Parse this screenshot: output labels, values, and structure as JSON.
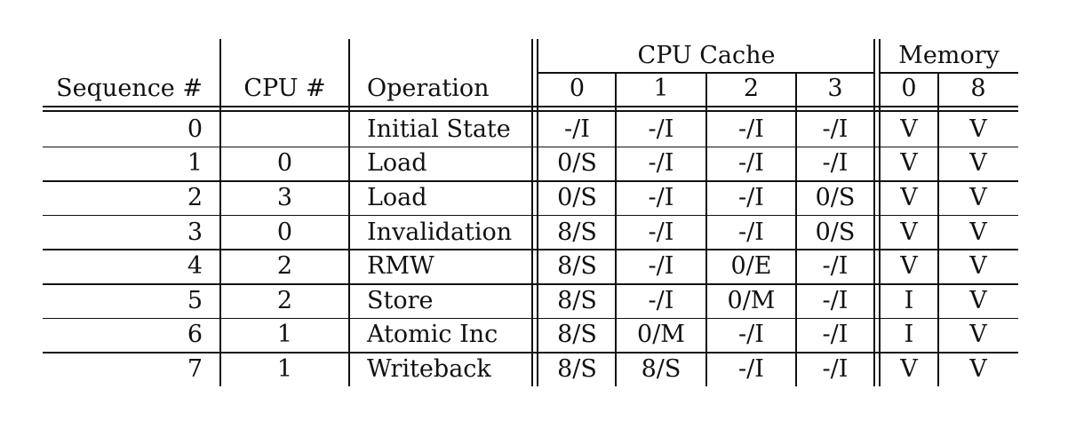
{
  "table": {
    "group_headers": {
      "cpu_cache": "CPU Cache",
      "memory": "Memory"
    },
    "headers": [
      "Sequence #",
      "CPU #",
      "Operation",
      "0",
      "1",
      "2",
      "3",
      "0",
      "8"
    ],
    "rows": [
      [
        "0",
        "",
        "Initial State",
        "-/I",
        "-/I",
        "-/I",
        "-/I",
        "V",
        "V"
      ],
      [
        "1",
        "0",
        "Load",
        "0/S",
        "-/I",
        "-/I",
        "-/I",
        "V",
        "V"
      ],
      [
        "2",
        "3",
        "Load",
        "0/S",
        "-/I",
        "-/I",
        "0/S",
        "V",
        "V"
      ],
      [
        "3",
        "0",
        "Invalidation",
        "8/S",
        "-/I",
        "-/I",
        "0/S",
        "V",
        "V"
      ],
      [
        "4",
        "2",
        "RMW",
        "8/S",
        "-/I",
        "0/E",
        "-/I",
        "V",
        "V"
      ],
      [
        "5",
        "2",
        "Store",
        "8/S",
        "-/I",
        "0/M",
        "-/I",
        "I",
        "V"
      ],
      [
        "6",
        "1",
        "Atomic Inc",
        "8/S",
        "0/M",
        "-/I",
        "-/I",
        "I",
        "V"
      ],
      [
        "7",
        "1",
        "Writeback",
        "8/S",
        "8/S",
        "-/I",
        "-/I",
        "V",
        "V"
      ]
    ]
  }
}
